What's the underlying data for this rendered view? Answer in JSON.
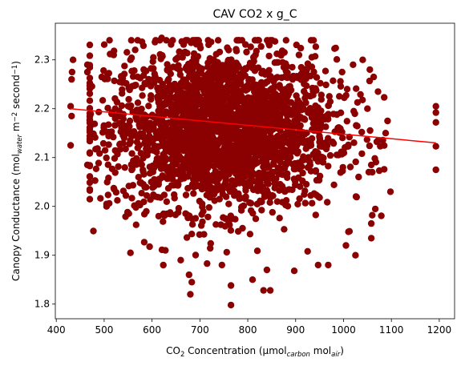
{
  "chart_data": {
    "type": "scatter",
    "title": "CAV CO2 x g_C",
    "xlabel": {
      "parts": [
        {
          "text": "CO",
          "shift": "none"
        },
        {
          "text": "2",
          "shift": "sub"
        },
        {
          "text": " Concentration (µmol",
          "shift": "none"
        },
        {
          "text": "carbon",
          "shift": "sub"
        },
        {
          "text": " mol",
          "shift": "none"
        },
        {
          "text": "air",
          "shift": "sub"
        },
        {
          "text": ")",
          "shift": "none"
        }
      ]
    },
    "ylabel": {
      "parts": [
        {
          "text": "Canopy Conductance (mol",
          "shift": "none"
        },
        {
          "text": "water",
          "shift": "sub"
        },
        {
          "text": " m",
          "shift": "none"
        },
        {
          "text": "−2",
          "shift": "super"
        },
        {
          "text": " second",
          "shift": "none"
        },
        {
          "text": "−1",
          "shift": "super"
        },
        {
          "text": ")",
          "shift": "none"
        }
      ]
    },
    "xlim": [
      398,
      1232
    ],
    "ylim": [
      1.77,
      2.375
    ],
    "xticks": [
      400,
      500,
      600,
      700,
      800,
      900,
      1000,
      1100,
      1200
    ],
    "yticks": [
      1.8,
      1.9,
      2.0,
      2.1,
      2.2,
      2.3
    ],
    "grid": false,
    "scatter_color": "#8b0000",
    "trend_color": "#ff0000",
    "trendline": {
      "x": [
        430,
        1193
      ],
      "y": [
        2.2,
        2.13
      ]
    },
    "cloud": {
      "x_center": 745,
      "x_sd": 118,
      "y_center": 2.158,
      "y_sd": 0.082,
      "count": 2600
    },
    "points": [
      {
        "x": 430,
        "y": 2.205
      },
      {
        "x": 432,
        "y": 2.185
      },
      {
        "x": 430,
        "y": 2.125
      },
      {
        "x": 435,
        "y": 2.3
      },
      {
        "x": 433,
        "y": 2.275
      },
      {
        "x": 432,
        "y": 2.26
      },
      {
        "x": 1193,
        "y": 2.205
      },
      {
        "x": 1193,
        "y": 2.192
      },
      {
        "x": 1193,
        "y": 2.172
      },
      {
        "x": 1193,
        "y": 2.123
      },
      {
        "x": 1193,
        "y": 2.075
      },
      {
        "x": 765,
        "y": 1.798
      },
      {
        "x": 680,
        "y": 1.82
      },
      {
        "x": 833,
        "y": 1.828
      },
      {
        "x": 847,
        "y": 1.828
      },
      {
        "x": 765,
        "y": 1.838
      },
      {
        "x": 810,
        "y": 1.85
      },
      {
        "x": 683,
        "y": 1.845
      },
      {
        "x": 555,
        "y": 1.905
      },
      {
        "x": 1058,
        "y": 1.935
      },
      {
        "x": 1098,
        "y": 2.03
      },
      {
        "x": 1092,
        "y": 2.175
      },
      {
        "x": 1088,
        "y": 2.15
      },
      {
        "x": 1072,
        "y": 2.235
      },
      {
        "x": 1063,
        "y": 2.265
      },
      {
        "x": 1055,
        "y": 2.28
      },
      {
        "x": 1050,
        "y": 2.2
      },
      {
        "x": 1060,
        "y": 1.982
      },
      {
        "x": 1058,
        "y": 1.965
      },
      {
        "x": 1058,
        "y": 2.085
      },
      {
        "x": 1060,
        "y": 2.07
      },
      {
        "x": 1025,
        "y": 1.9
      },
      {
        "x": 1005,
        "y": 1.92
      },
      {
        "x": 968,
        "y": 1.88
      },
      {
        "x": 947,
        "y": 1.88
      },
      {
        "x": 925,
        "y": 1.908
      },
      {
        "x": 897,
        "y": 1.868
      },
      {
        "x": 840,
        "y": 1.87
      },
      {
        "x": 746,
        "y": 1.88
      },
      {
        "x": 715,
        "y": 1.883
      },
      {
        "x": 660,
        "y": 1.89
      },
      {
        "x": 628,
        "y": 1.91
      },
      {
        "x": 505,
        "y": 2.005
      },
      {
        "x": 505,
        "y": 2.0
      },
      {
        "x": 470,
        "y": 2.11
      },
      {
        "x": 465,
        "y": 2.085
      },
      {
        "x": 470,
        "y": 2.175
      },
      {
        "x": 465,
        "y": 2.29
      },
      {
        "x": 465,
        "y": 2.275
      },
      {
        "x": 495,
        "y": 2.265
      },
      {
        "x": 520,
        "y": 2.31
      },
      {
        "x": 555,
        "y": 2.3
      },
      {
        "x": 620,
        "y": 2.345
      },
      {
        "x": 630,
        "y": 2.34
      },
      {
        "x": 700,
        "y": 2.33
      },
      {
        "x": 760,
        "y": 2.32
      },
      {
        "x": 845,
        "y": 2.33
      },
      {
        "x": 907,
        "y": 2.31
      },
      {
        "x": 1020,
        "y": 2.29
      },
      {
        "x": 1040,
        "y": 2.3
      },
      {
        "x": 997,
        "y": 2.275
      }
    ]
  }
}
